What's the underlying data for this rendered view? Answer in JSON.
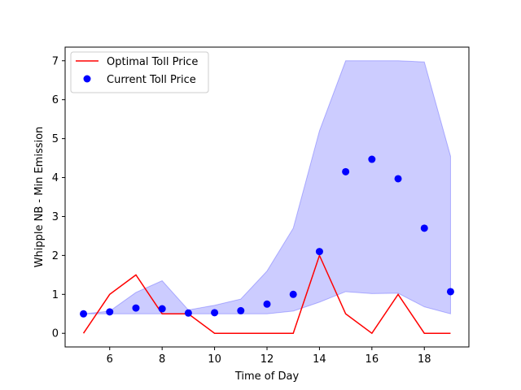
{
  "chart_data": {
    "type": "line",
    "title": "",
    "xlabel": "Time of Day",
    "ylabel": "Whipple NB - Min Emission",
    "xlim": [
      4.3,
      19.7
    ],
    "ylim": [
      -0.35,
      7.35
    ],
    "xticks": [
      6,
      8,
      10,
      12,
      14,
      16,
      18
    ],
    "yticks": [
      0,
      1,
      2,
      3,
      4,
      5,
      6,
      7
    ],
    "grid": false,
    "legend_position": "top-left",
    "colors": {
      "optimal": "#ff0000",
      "current": "#0000ff",
      "band_fill": "#0000ff",
      "band_fill_opacity": 0.2
    },
    "x": [
      5,
      6,
      7,
      8,
      9,
      10,
      11,
      12,
      13,
      14,
      15,
      16,
      17,
      18,
      19
    ],
    "series": [
      {
        "name": "Optimal Toll Price",
        "kind": "line",
        "values": [
          0.0,
          1.0,
          1.5,
          0.5,
          0.5,
          0.0,
          0.0,
          0.0,
          0.0,
          2.0,
          0.5,
          0.0,
          1.0,
          0.0,
          0.0
        ]
      },
      {
        "name": "Current Toll Price",
        "kind": "scatter",
        "values": [
          0.5,
          0.55,
          0.65,
          0.63,
          0.52,
          0.53,
          0.58,
          0.75,
          1.0,
          2.1,
          4.15,
          4.47,
          3.97,
          2.7,
          1.07
        ]
      }
    ],
    "band": {
      "lower": [
        0.5,
        0.5,
        0.5,
        0.5,
        0.5,
        0.5,
        0.5,
        0.5,
        0.57,
        0.8,
        1.07,
        1.02,
        1.03,
        0.68,
        0.5
      ],
      "upper": [
        0.5,
        0.57,
        1.05,
        1.35,
        0.6,
        0.72,
        0.88,
        1.6,
        2.7,
        5.2,
        7.0,
        7.0,
        7.0,
        6.97,
        4.55
      ]
    }
  }
}
